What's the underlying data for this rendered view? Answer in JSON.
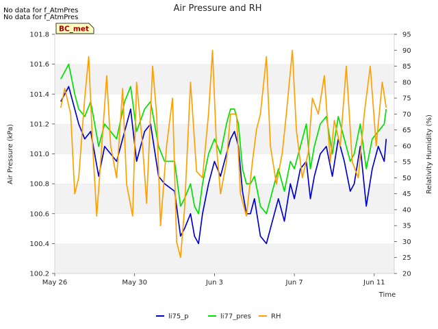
{
  "notes": [
    "No data for f_AtmPres",
    "No data for f_AtmPres"
  ],
  "site_badge": "BC_met",
  "chart_data": {
    "type": "line",
    "title": "Air Pressure and RH",
    "xlabel": "Time",
    "ylabel_left": "Air Pressure (kPa)",
    "ylabel_right": "Relativity Humidity (%)",
    "x_ticks": [
      "May 26",
      "May 30",
      "Jun 3",
      "Jun 7",
      "Jun 11"
    ],
    "x_tick_days": [
      0,
      4,
      8,
      12,
      16
    ],
    "xlim_days": [
      0,
      17
    ],
    "ylim_left": [
      100.2,
      101.8
    ],
    "yticks_left": [
      "100.2",
      "100.4",
      "100.6",
      "100.8",
      "101.0",
      "101.2",
      "101.4",
      "101.6",
      "101.8"
    ],
    "ylim_right": [
      20,
      95
    ],
    "yticks_right": [
      "20",
      "25",
      "30",
      "35",
      "40",
      "45",
      "50",
      "55",
      "60",
      "65",
      "70",
      "75",
      "80",
      "85",
      "90",
      "95"
    ],
    "grid": "horizontal bands",
    "legend_position": "bottom-center",
    "series": [
      {
        "name": "li75_p",
        "axis": "left",
        "color": "#0000cc",
        "x": [
          0.3,
          0.5,
          0.7,
          1.0,
          1.2,
          1.5,
          1.8,
          2.2,
          2.5,
          2.8,
          3.1,
          3.5,
          3.8,
          4.1,
          4.5,
          4.8,
          5.2,
          5.5,
          6.0,
          6.3,
          6.5,
          6.8,
          7.0,
          7.2,
          7.4,
          7.7,
          8.0,
          8.3,
          8.6,
          8.8,
          9.0,
          9.2,
          9.4,
          9.6,
          9.8,
          10.0,
          10.3,
          10.6,
          10.9,
          11.2,
          11.5,
          11.8,
          12.0,
          12.3,
          12.6,
          12.8,
          13.0,
          13.3,
          13.6,
          13.9,
          14.2,
          14.5,
          14.8,
          15.0,
          15.3,
          15.6,
          15.9,
          16.2,
          16.5,
          16.6
        ],
        "values": [
          101.35,
          101.4,
          101.45,
          101.3,
          101.2,
          101.1,
          101.15,
          100.85,
          101.05,
          101.0,
          100.95,
          101.15,
          101.3,
          100.95,
          101.15,
          101.2,
          100.85,
          100.8,
          100.75,
          100.45,
          100.5,
          100.6,
          100.45,
          100.4,
          100.6,
          100.8,
          100.95,
          100.85,
          101.0,
          101.1,
          101.15,
          101.05,
          100.75,
          100.6,
          100.6,
          100.7,
          100.45,
          100.4,
          100.55,
          100.7,
          100.55,
          100.8,
          100.7,
          100.9,
          100.95,
          100.7,
          100.85,
          101.0,
          101.05,
          100.85,
          101.1,
          100.95,
          100.75,
          100.8,
          101.05,
          100.65,
          100.9,
          101.05,
          100.95,
          101.1
        ]
      },
      {
        "name": "li77_pres",
        "axis": "left",
        "color": "#00e000",
        "x": [
          0.3,
          0.5,
          0.7,
          1.0,
          1.2,
          1.5,
          1.8,
          2.2,
          2.5,
          2.8,
          3.1,
          3.5,
          3.8,
          4.1,
          4.5,
          4.8,
          5.2,
          5.5,
          6.0,
          6.3,
          6.5,
          6.8,
          7.0,
          7.2,
          7.4,
          7.7,
          8.0,
          8.3,
          8.6,
          8.8,
          9.0,
          9.2,
          9.4,
          9.6,
          9.8,
          10.0,
          10.3,
          10.6,
          10.9,
          11.2,
          11.5,
          11.8,
          12.0,
          12.3,
          12.6,
          12.8,
          13.0,
          13.3,
          13.6,
          13.9,
          14.2,
          14.5,
          14.8,
          15.0,
          15.3,
          15.6,
          15.9,
          16.2,
          16.5,
          16.6
        ],
        "values": [
          101.5,
          101.55,
          101.6,
          101.4,
          101.3,
          101.25,
          101.35,
          101.05,
          101.2,
          101.15,
          101.1,
          101.35,
          101.45,
          101.15,
          101.3,
          101.35,
          101.05,
          100.95,
          100.95,
          100.65,
          100.7,
          100.8,
          100.65,
          100.6,
          100.8,
          101.0,
          101.1,
          101.0,
          101.2,
          101.3,
          101.3,
          101.2,
          100.9,
          100.8,
          100.8,
          100.85,
          100.65,
          100.6,
          100.75,
          100.9,
          100.75,
          100.95,
          100.9,
          101.05,
          101.2,
          100.9,
          101.05,
          101.2,
          101.25,
          101.0,
          101.25,
          101.1,
          100.95,
          101.0,
          101.2,
          100.9,
          101.1,
          101.15,
          101.2,
          101.3
        ]
      },
      {
        "name": "RH",
        "axis": "right",
        "color": "#ffa000",
        "x": [
          0.3,
          0.5,
          0.8,
          1.0,
          1.2,
          1.5,
          1.7,
          1.9,
          2.1,
          2.3,
          2.6,
          2.8,
          3.1,
          3.4,
          3.6,
          3.9,
          4.1,
          4.4,
          4.6,
          4.9,
          5.1,
          5.3,
          5.6,
          5.9,
          6.1,
          6.3,
          6.5,
          6.8,
          7.1,
          7.4,
          7.7,
          7.9,
          8.1,
          8.3,
          8.6,
          8.8,
          9.1,
          9.3,
          9.6,
          9.9,
          10.1,
          10.3,
          10.6,
          10.8,
          11.1,
          11.4,
          11.6,
          11.9,
          12.1,
          12.4,
          12.7,
          12.9,
          13.2,
          13.5,
          13.8,
          14.0,
          14.3,
          14.6,
          14.9,
          15.2,
          15.5,
          15.8,
          16.1,
          16.4,
          16.6
        ],
        "values": [
          72,
          78,
          70,
          45,
          50,
          75,
          88,
          60,
          38,
          55,
          82,
          60,
          50,
          78,
          48,
          38,
          80,
          60,
          42,
          85,
          70,
          35,
          60,
          75,
          30,
          25,
          40,
          80,
          52,
          50,
          70,
          90,
          60,
          45,
          55,
          70,
          70,
          45,
          38,
          55,
          65,
          70,
          88,
          60,
          48,
          58,
          70,
          90,
          65,
          50,
          58,
          75,
          70,
          82,
          55,
          68,
          60,
          85,
          55,
          50,
          70,
          85,
          60,
          80,
          72
        ]
      }
    ]
  }
}
